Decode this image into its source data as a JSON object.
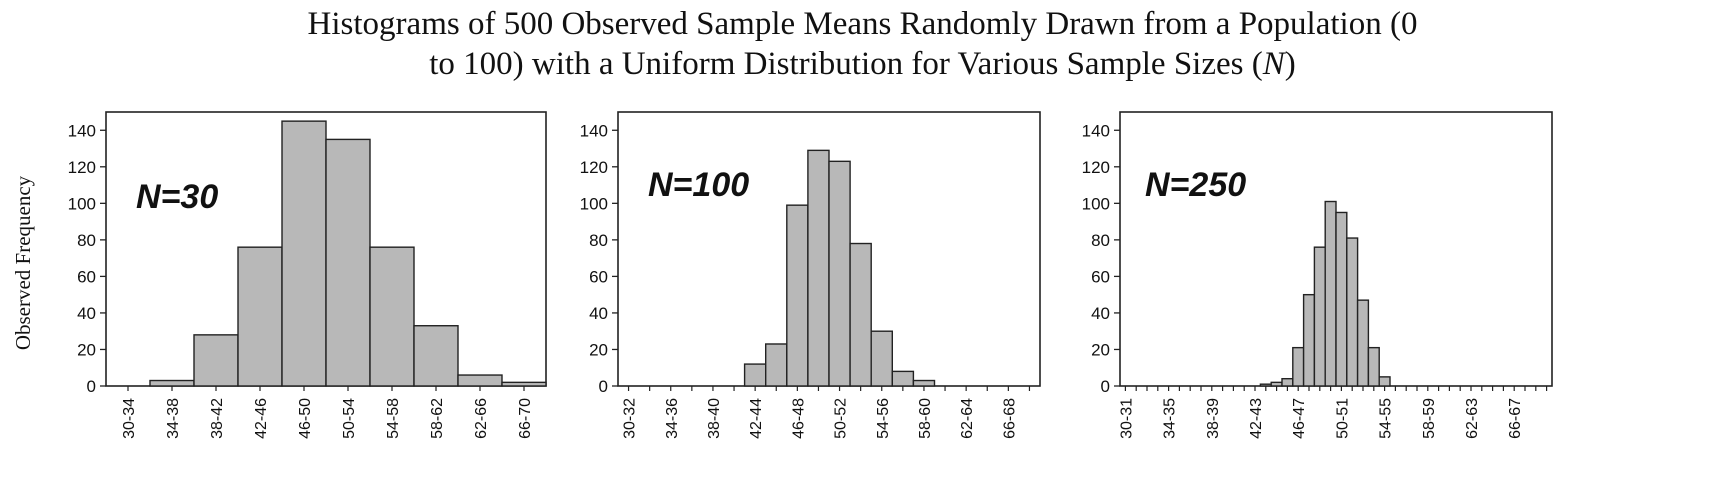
{
  "title": {
    "line1": "Histograms of 500 Observed Sample Means Randomly Drawn from a Population (0",
    "line2_pre": "to 100) with a Uniform Distribution for Various Sample Sizes (",
    "line2_var": "N",
    "line2_post": ")"
  },
  "chart_data": [
    {
      "type": "bar",
      "panel_label": "N=30",
      "ylabel": "Observed Frequency",
      "ylim": [
        0,
        150
      ],
      "yticks": [
        0,
        20,
        40,
        60,
        80,
        100,
        120,
        140
      ],
      "categories": [
        "30-34",
        "34-38",
        "38-42",
        "42-46",
        "46-50",
        "50-54",
        "54-58",
        "58-62",
        "62-66",
        "66-70"
      ],
      "values": [
        0,
        3,
        28,
        76,
        145,
        135,
        76,
        33,
        6,
        2
      ],
      "labeled_categories": [
        "30-34",
        "34-38",
        "38-42",
        "42-46",
        "46-50",
        "50-54",
        "54-58",
        "58-62",
        "62-66",
        "66-70"
      ]
    },
    {
      "type": "bar",
      "panel_label": "N=100",
      "ylim": [
        0,
        150
      ],
      "yticks": [
        0,
        20,
        40,
        60,
        80,
        100,
        120,
        140
      ],
      "categories": [
        "30-32",
        "32-34",
        "34-36",
        "36-38",
        "38-40",
        "40-42",
        "42-44",
        "44-46",
        "46-48",
        "48-50",
        "50-52",
        "52-54",
        "54-56",
        "56-58",
        "58-60",
        "60-62",
        "62-64",
        "64-66",
        "66-68",
        "68-70"
      ],
      "values": [
        0,
        0,
        0,
        0,
        0,
        0,
        12,
        23,
        99,
        129,
        123,
        78,
        30,
        8,
        3,
        0,
        0,
        0,
        0,
        0
      ],
      "labeled_categories": [
        "30-32",
        "34-36",
        "38-40",
        "42-44",
        "46-48",
        "50-52",
        "54-56",
        "58-60",
        "62-64",
        "66-68"
      ]
    },
    {
      "type": "bar",
      "panel_label": "N=250",
      "ylim": [
        0,
        150
      ],
      "yticks": [
        0,
        20,
        40,
        60,
        80,
        100,
        120,
        140
      ],
      "categories": [
        "30-31",
        "31-32",
        "32-33",
        "33-34",
        "34-35",
        "35-36",
        "36-37",
        "37-38",
        "38-39",
        "39-40",
        "40-41",
        "41-42",
        "42-43",
        "43-44",
        "44-45",
        "45-46",
        "46-47",
        "47-48",
        "48-49",
        "49-50",
        "50-51",
        "51-52",
        "52-53",
        "53-54",
        "54-55",
        "55-56",
        "56-57",
        "57-58",
        "58-59",
        "59-60",
        "60-61",
        "61-62",
        "62-63",
        "63-64",
        "64-65",
        "65-66",
        "66-67",
        "67-68",
        "68-69",
        "69-70"
      ],
      "values": [
        0,
        0,
        0,
        0,
        0,
        0,
        0,
        0,
        0,
        0,
        0,
        0,
        0,
        1,
        2,
        4,
        21,
        50,
        76,
        101,
        95,
        81,
        47,
        21,
        5,
        0,
        0,
        0,
        0,
        0,
        0,
        0,
        0,
        0,
        0,
        0,
        0,
        0,
        0,
        0
      ],
      "labeled_categories": [
        "30-31",
        "34-35",
        "38-39",
        "42-43",
        "46-47",
        "50-51",
        "54-55",
        "58-59",
        "62-63",
        "66-67"
      ]
    }
  ]
}
